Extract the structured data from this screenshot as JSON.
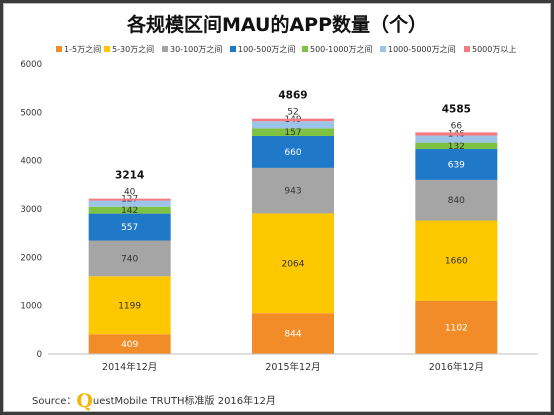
{
  "source": {
    "prefix": "Source：",
    "logo_letter": "Q",
    "text": "uestMobile TRUTH标准版 2016年12月"
  },
  "chart_data": {
    "type": "bar",
    "stacked": true,
    "title": "各规模区间MAU的APP数量（个）",
    "categories": [
      "2014年12月",
      "2015年12月",
      "2016年12月"
    ],
    "ylim": [
      0,
      6000
    ],
    "yticks": [
      0,
      1000,
      2000,
      3000,
      4000,
      5000,
      6000
    ],
    "legend_position": "top-right",
    "grid": false,
    "totals": [
      3214,
      4869,
      4585
    ],
    "series": [
      {
        "name": "1-5万之间",
        "color": "#f28c28",
        "values": [
          409,
          844,
          1102
        ]
      },
      {
        "name": "5-30万之间",
        "color": "#fdc800",
        "values": [
          1199,
          2064,
          1660
        ]
      },
      {
        "name": "30-100万之间",
        "color": "#a5a5a5",
        "values": [
          740,
          943,
          840
        ]
      },
      {
        "name": "100-500万之间",
        "color": "#1f78c8",
        "values": [
          557,
          660,
          639
        ]
      },
      {
        "name": "500-1000万之间",
        "color": "#7dc242",
        "values": [
          142,
          157,
          132
        ]
      },
      {
        "name": "1000-5000万之间",
        "color": "#9dc3e6",
        "values": [
          127,
          149,
          146
        ]
      },
      {
        "name": "5000万以上",
        "color": "#f47b82",
        "values": [
          40,
          52,
          66
        ]
      }
    ]
  }
}
